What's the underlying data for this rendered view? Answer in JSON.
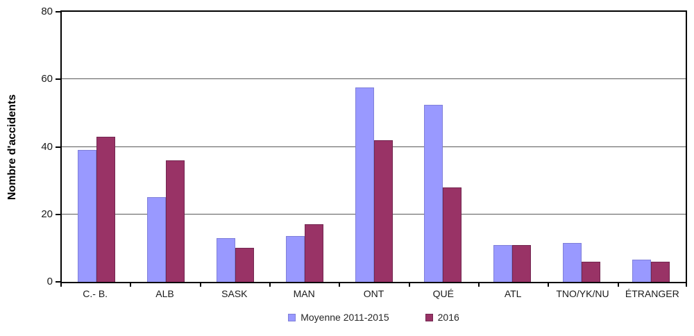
{
  "chart_data": {
    "type": "bar",
    "title": "",
    "xlabel": "",
    "ylabel": "Nombre d'accidents",
    "ylim": [
      0,
      80
    ],
    "yticks": [
      0,
      20,
      40,
      60,
      80
    ],
    "grid": true,
    "legend_position": "bottom-center",
    "categories": [
      "C.- B.",
      "ALB",
      "SASK",
      "MAN",
      "ONT",
      "QUÉ",
      "ATL",
      "TNO/YK/NU",
      "ÉTRANGER"
    ],
    "series": [
      {
        "name": "Moyenne 2011-2015",
        "color": "#9999FF",
        "border_color": "#7F7FD9",
        "values": [
          39,
          25,
          13,
          13.5,
          57.5,
          52.5,
          11,
          11.5,
          6.5
        ]
      },
      {
        "name": "2016",
        "color": "#993366",
        "border_color": "#732650",
        "values": [
          43,
          36,
          10,
          17,
          42,
          28,
          11,
          6,
          6
        ]
      }
    ]
  },
  "colors": {
    "axis": "#000000",
    "gridline": "#595959",
    "background": "#FFFFFF",
    "text": "#1a1a1a"
  }
}
